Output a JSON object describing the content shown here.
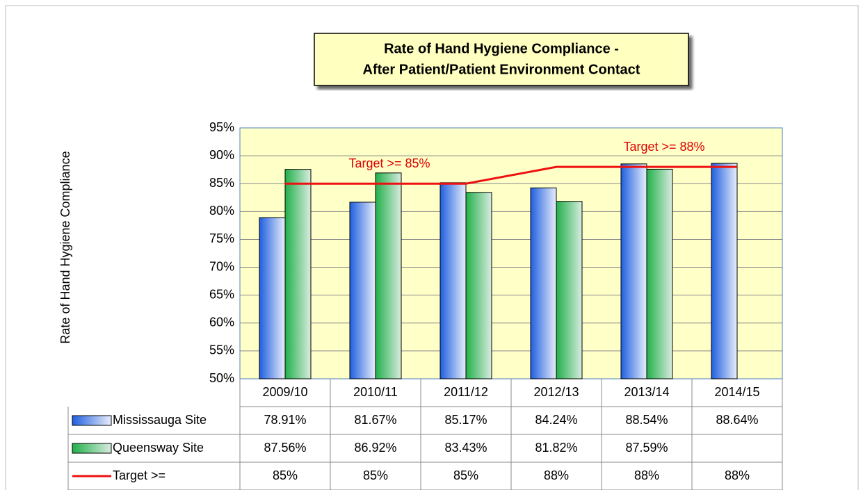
{
  "chart_data": {
    "type": "bar",
    "title": [
      "Rate of Hand Hygiene Compliance -",
      "After Patient/Patient Environment Contact"
    ],
    "y_label": "Rate of Hand Hygiene Compliance",
    "categories": [
      "2009/10",
      "2010/11",
      "2011/12",
      "2012/13",
      "2013/14",
      "2014/15"
    ],
    "series": [
      {
        "name": "Mississauga Site",
        "color": "#1f5fe0",
        "type": "bar",
        "values": [
          78.91,
          81.67,
          85.17,
          84.24,
          88.54,
          88.64
        ],
        "value_labels": [
          "78.91%",
          "81.67%",
          "85.17%",
          "84.24%",
          "88.54%",
          "88.64%"
        ]
      },
      {
        "name": "Queensway Site",
        "color": "#22b04a",
        "type": "bar",
        "values": [
          87.56,
          86.92,
          83.43,
          81.82,
          87.59,
          null
        ],
        "value_labels": [
          "87.56%",
          "86.92%",
          "83.43%",
          "81.82%",
          "87.59%",
          null
        ]
      },
      {
        "name": "Target >=",
        "color": "#ee1111",
        "type": "line",
        "values": [
          85,
          85,
          85,
          88,
          88,
          88
        ],
        "value_labels": [
          "85%",
          "85%",
          "85%",
          "88%",
          "88%",
          "88%"
        ]
      }
    ],
    "annotations": [
      "Target >= 85%",
      "Target >= 88%"
    ],
    "ylim": [
      50,
      95
    ],
    "yticks": [
      {
        "value": 50,
        "label": "50%"
      },
      {
        "value": 55,
        "label": "55%"
      },
      {
        "value": 60,
        "label": "60%"
      },
      {
        "value": 65,
        "label": "65%"
      },
      {
        "value": 70,
        "label": "70%"
      },
      {
        "value": 75,
        "label": "75%"
      },
      {
        "value": 80,
        "label": "80%"
      },
      {
        "value": 85,
        "label": "85%"
      },
      {
        "value": 90,
        "label": "90%"
      },
      {
        "value": 95,
        "label": "95%"
      }
    ],
    "grid": true,
    "legend": "table"
  }
}
